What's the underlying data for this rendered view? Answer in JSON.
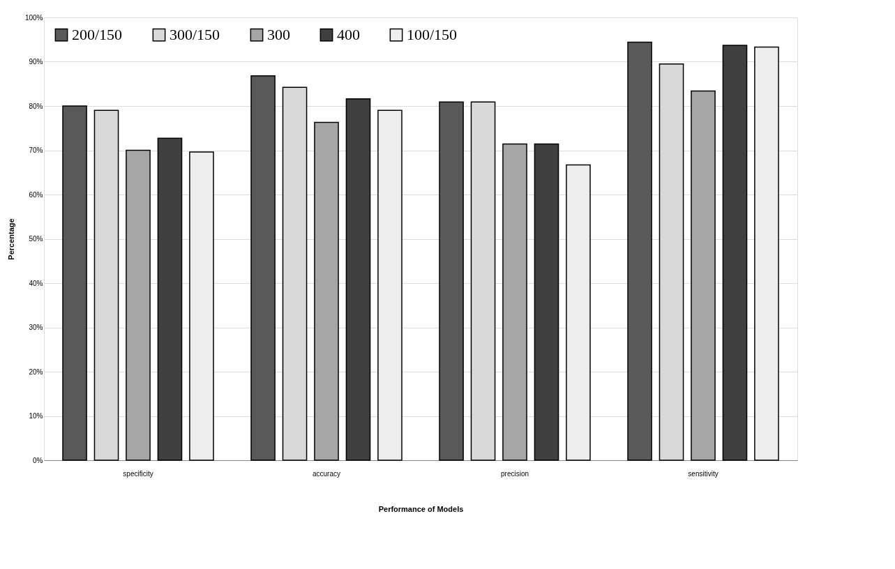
{
  "chart_data": {
    "type": "bar",
    "xlabel": "Performance of Models",
    "ylabel": "Percentage",
    "categories": [
      "specificity",
      "accuracy",
      "precision",
      "sensitivity"
    ],
    "series": [
      {
        "name": "200/150",
        "color": "#595959",
        "values": [
          80.0,
          86.8,
          80.9,
          94.4
        ]
      },
      {
        "name": "300/150",
        "color": "#d9d9d9",
        "values": [
          79.0,
          84.2,
          80.9,
          89.5
        ]
      },
      {
        "name": "300",
        "color": "#a6a6a6",
        "values": [
          70.0,
          76.3,
          71.4,
          83.4
        ]
      },
      {
        "name": "400",
        "color": "#404040",
        "values": [
          72.7,
          81.6,
          71.4,
          93.7
        ]
      },
      {
        "name": "100/150",
        "color": "#ededed",
        "values": [
          69.6,
          79.0,
          66.7,
          93.3
        ]
      }
    ],
    "ylim": [
      0,
      100
    ],
    "yticks": [
      {
        "value": 0,
        "label": "0%"
      },
      {
        "value": 10,
        "label": "10%"
      },
      {
        "value": 20,
        "label": "20%"
      },
      {
        "value": 30,
        "label": "30%"
      },
      {
        "value": 40,
        "label": "40%"
      },
      {
        "value": 50,
        "label": "50%"
      },
      {
        "value": 60,
        "label": "60%"
      },
      {
        "value": 70,
        "label": "70%"
      },
      {
        "value": 80,
        "label": "80%"
      },
      {
        "value": 90,
        "label": "90%"
      },
      {
        "value": 100,
        "label": "100%"
      }
    ],
    "grid": "y",
    "legend": "top left"
  }
}
